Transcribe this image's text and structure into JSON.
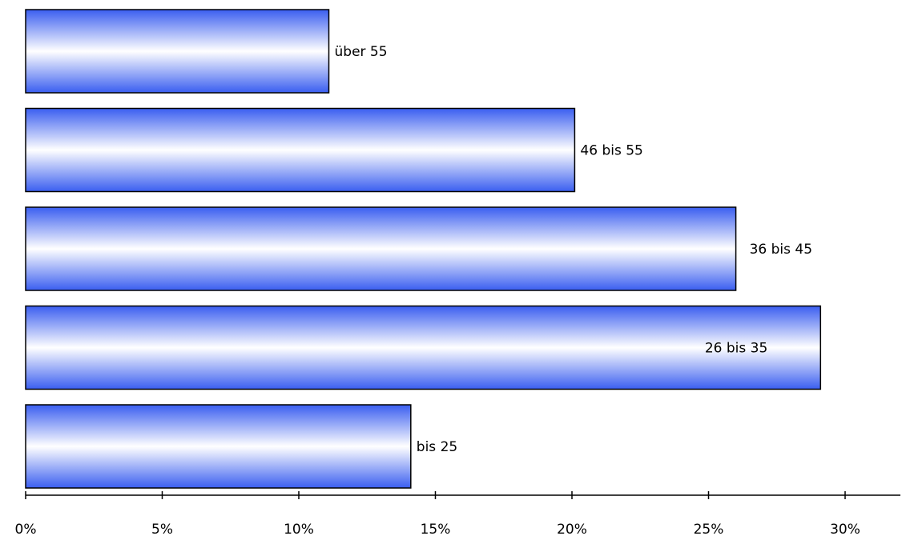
{
  "chart_data": {
    "type": "bar",
    "orientation": "horizontal",
    "title": "",
    "xlabel": "",
    "ylabel": "",
    "categories": [
      "über 55",
      "46 bis 55",
      "36 bis 45",
      "26 bis 35",
      "bis 25"
    ],
    "values": [
      11.1,
      20.1,
      26,
      29.1,
      14.1
    ],
    "unit": "%",
    "xlim": [
      0,
      32
    ],
    "ticks": [
      {
        "value": 0,
        "label": "0%"
      },
      {
        "value": 5,
        "label": "5%"
      },
      {
        "value": 10,
        "label": "10%"
      },
      {
        "value": 15,
        "label": "15%"
      },
      {
        "value": 20,
        "label": "20%"
      },
      {
        "value": 25,
        "label": "25%"
      },
      {
        "value": 30,
        "label": "30%"
      }
    ],
    "grid": false,
    "legend": "none",
    "data_labels": "category names beside bars",
    "colors": {
      "bar_edge": "#3a5ef0",
      "bar_center": "#ffffff",
      "outline": "#000000"
    }
  }
}
